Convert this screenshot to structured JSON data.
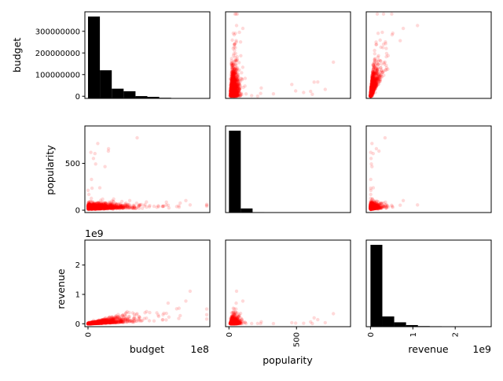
{
  "chart_data": {
    "type": "scatter",
    "variables": [
      "budget",
      "popularity",
      "revenue"
    ],
    "diagonal": "histogram",
    "off_diagonal": "scatter",
    "colors": {
      "histogram": "#000000",
      "points": "#ff0000",
      "axes": "#000000"
    },
    "point_alpha": 0.15,
    "axis_labels": {
      "y": [
        "budget",
        "popularity",
        "revenue"
      ],
      "x": [
        "budget",
        "popularity",
        "revenue"
      ]
    },
    "ranges": {
      "budget": [
        -10000000,
        390000000
      ],
      "popularity": [
        -25,
        900
      ],
      "revenue": [
        -100000000,
        2850000000
      ]
    },
    "ticks": {
      "budget": {
        "y_values": [
          0,
          100000000,
          200000000,
          300000000
        ],
        "y_labels": [
          "0",
          "100000000",
          "200000000",
          "300000000"
        ],
        "x_values": [
          0
        ],
        "x_labels": [
          "0"
        ],
        "offset_text": "1e8"
      },
      "popularity": {
        "y_values": [
          0,
          500
        ],
        "y_labels": [
          "0",
          "500"
        ],
        "x_values": [
          0,
          500
        ],
        "x_labels": [
          "0",
          "500"
        ]
      },
      "revenue": {
        "y_values": [
          0,
          1000000000,
          2000000000
        ],
        "y_labels": [
          "0",
          "1",
          "2"
        ],
        "x_values": [
          0,
          1000000000,
          2000000000
        ],
        "x_labels": [
          "0",
          "1",
          "2"
        ],
        "offset_text": "1e9"
      }
    },
    "histograms": {
      "budget": {
        "bin_edges": [
          0,
          38000000,
          76000000,
          114000000,
          152000000,
          190000000,
          228000000,
          266000000,
          304000000,
          342000000,
          380000000
        ],
        "counts": [
          1600,
          550,
          190,
          140,
          45,
          30,
          12,
          4,
          1,
          1
        ]
      },
      "popularity": {
        "bin_edges": [
          0,
          87.5,
          175,
          262.5,
          350,
          437.5,
          525,
          612.5,
          700,
          787.5,
          875
        ],
        "counts": [
          3000,
          150,
          15,
          4,
          3,
          2,
          1,
          1,
          1,
          1
        ]
      },
      "revenue": {
        "bin_edges": [
          0,
          280000000,
          560000000,
          840000000,
          1120000000,
          1400000000,
          1680000000,
          1960000000,
          2240000000,
          2520000000,
          2800000000
        ],
        "counts": [
          2800,
          350,
          150,
          55,
          20,
          15,
          8,
          3,
          1,
          1
        ]
      }
    }
  }
}
